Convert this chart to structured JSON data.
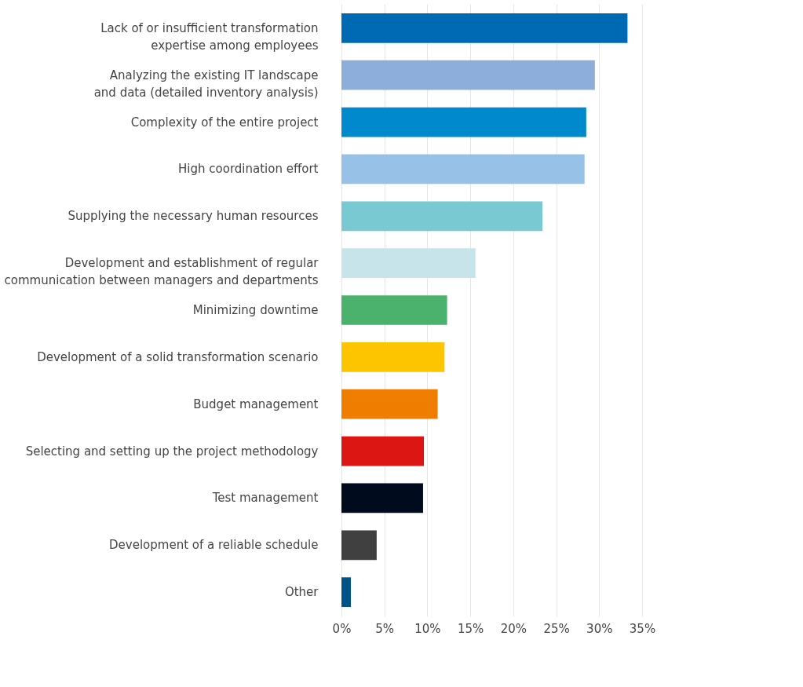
{
  "chart_data": {
    "type": "bar",
    "orientation": "horizontal",
    "categories": [
      "Lack of or insufficient transformation expertise among employees",
      "Analyzing the existing IT landscape and data (detailed inventory analysis)",
      "Complexity of the entire project",
      "High coordination effort",
      "Supplying the necessary human resources",
      "Development and establishment of regular communication between managers and departments",
      "Minimizing downtime",
      "Development of a solid transformation scenario",
      "Budget management",
      "Selecting and setting up the project methodology",
      "Test management",
      "Development of a reliable schedule",
      "Other"
    ],
    "values": [
      33.3,
      29.5,
      28.5,
      28.3,
      23.4,
      15.6,
      12.3,
      12.0,
      11.2,
      9.6,
      9.5,
      4.1,
      1.1
    ],
    "colors": [
      "#0069b4",
      "#8daedb",
      "#0089cd",
      "#97c1e7",
      "#78c9d1",
      "#c6e4e9",
      "#4bb26e",
      "#fdc500",
      "#ef7d00",
      "#dc1713",
      "#000c1e",
      "#404040",
      "#005289"
    ],
    "xlim": [
      0,
      35
    ],
    "xticks": [
      {
        "value": 0,
        "label": "0%"
      },
      {
        "value": 5,
        "label": "5%"
      },
      {
        "value": 10,
        "label": "10%"
      },
      {
        "value": 15,
        "label": "15%"
      },
      {
        "value": 20,
        "label": "20%"
      },
      {
        "value": 25,
        "label": "25%"
      },
      {
        "value": 30,
        "label": "30%"
      },
      {
        "value": 35,
        "label": "35%"
      }
    ],
    "grid": "x",
    "legend": false
  }
}
